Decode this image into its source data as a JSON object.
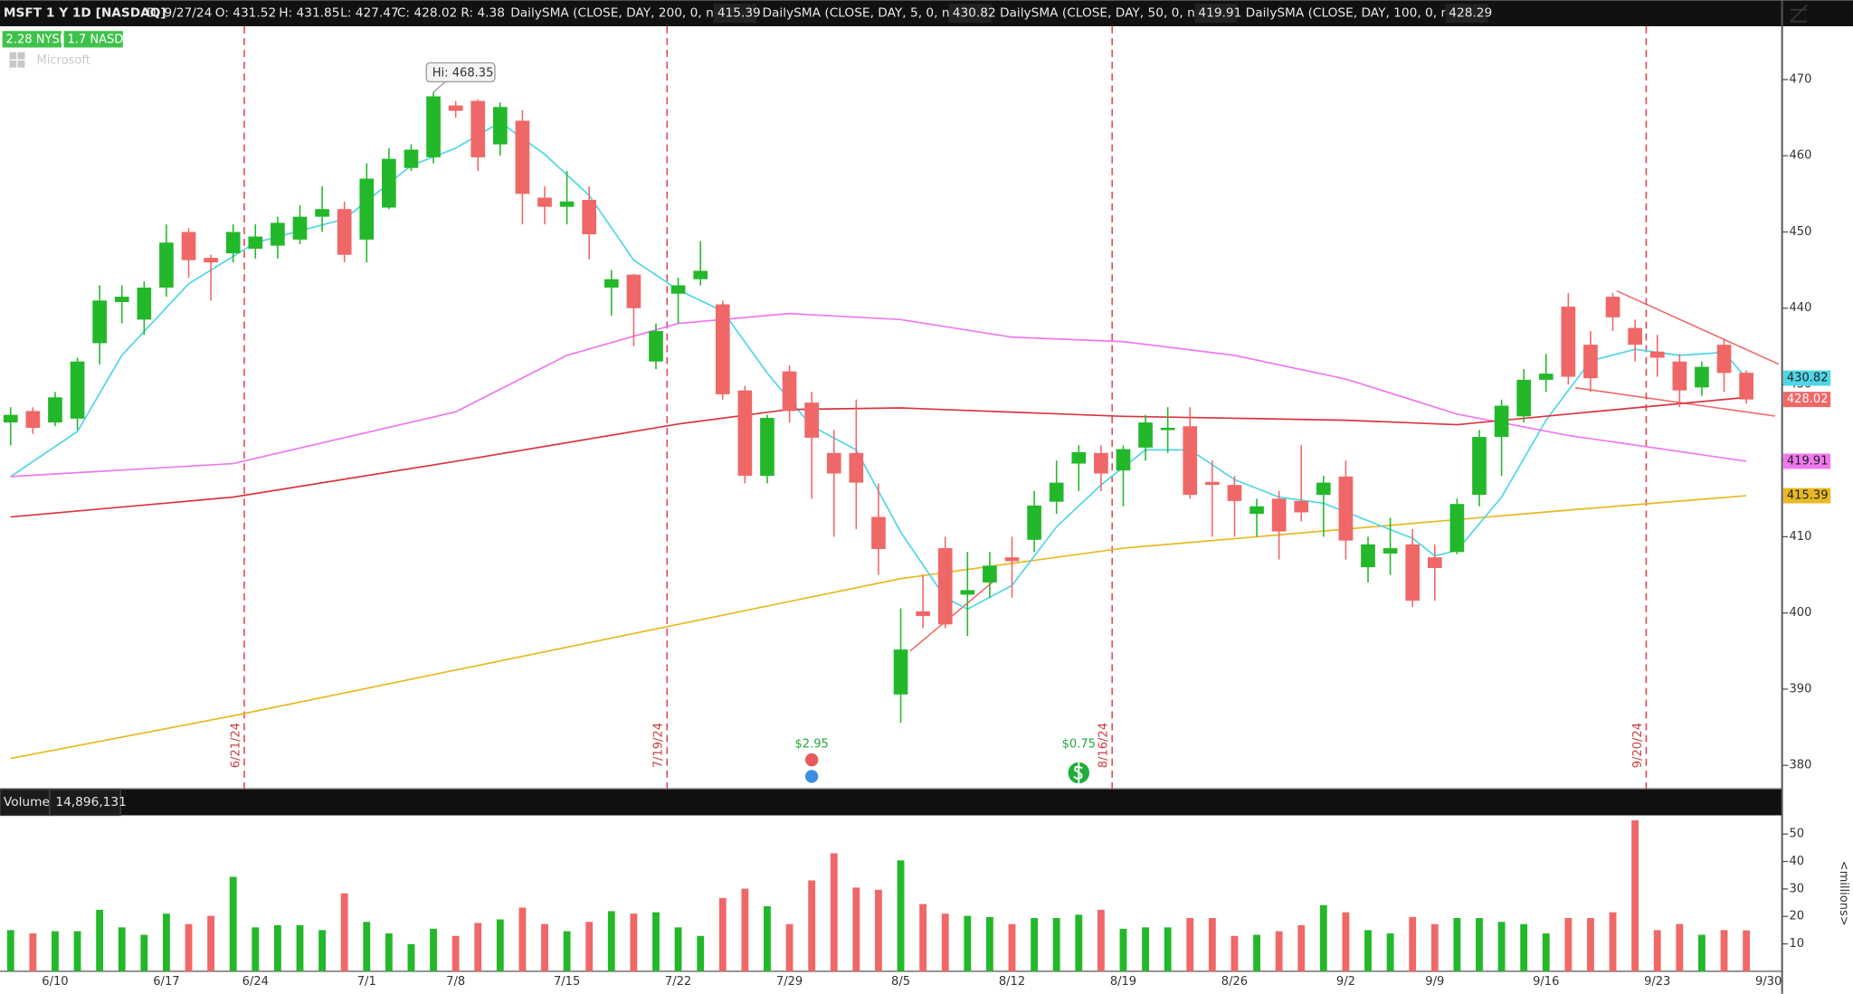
{
  "header": {
    "symbol": "MSFT 1 Y 1D [NASDAQ]",
    "date_label": "D:",
    "date": "9/27/24",
    "open_label": "O:",
    "high_label": "H:",
    "low_label": "L:",
    "close_label": "C:",
    "range_label": "R:",
    "range": 4.38,
    "nyse": "2.28 NYSE",
    "nasd": "1.7 NASD",
    "watermark": "Microsoft",
    "hi_label": "Hi:"
  },
  "chart_data": {
    "type": "candlestick",
    "categories": [
      null,
      null,
      "6/10",
      null,
      null,
      null,
      null,
      "6/17",
      null,
      null,
      null,
      "6/24",
      null,
      null,
      null,
      null,
      "7/1",
      null,
      null,
      null,
      "7/8",
      null,
      null,
      null,
      null,
      "7/15",
      null,
      null,
      null,
      null,
      "7/22",
      null,
      null,
      null,
      null,
      "7/29",
      null,
      null,
      null,
      null,
      "8/5",
      null,
      null,
      null,
      null,
      "8/12",
      null,
      null,
      null,
      null,
      "8/19",
      null,
      null,
      null,
      null,
      "8/26",
      null,
      null,
      null,
      null,
      "9/2",
      null,
      null,
      null,
      "9/9",
      null,
      null,
      null,
      null,
      "9/16",
      null,
      null,
      null,
      null,
      "9/23",
      null,
      null,
      null,
      null,
      "9/30"
    ],
    "open": [
      425,
      426.5,
      425,
      425.5,
      435.4,
      440.8,
      438.5,
      442.7,
      450,
      446.6,
      447.2,
      447.8,
      448.2,
      449,
      452,
      453,
      449,
      453.2,
      458.4,
      459.8,
      466.6,
      467.2,
      461.5,
      464.6,
      454.5,
      453.3,
      454.2,
      442.7,
      444.4,
      433,
      441.9,
      443.8,
      440.5,
      429.2,
      418,
      431.7,
      427.6,
      421,
      421,
      412.6,
      389.3,
      400.2,
      408.5,
      402.4,
      404,
      407.3,
      409.6,
      414.6,
      419.6,
      421,
      418.7,
      421.7,
      424,
      424.5,
      417.2,
      416.8,
      413,
      415,
      414.7,
      415.5,
      417.9,
      406,
      407.8,
      409,
      407.3,
      408,
      415.5,
      423.1,
      425.8,
      430.6,
      440.2,
      435.2,
      441.5,
      437.4,
      434.3,
      433,
      429.6,
      435.2,
      431.52,
      null
    ],
    "high": [
      427,
      427,
      429,
      433.5,
      443,
      443,
      443.5,
      451,
      450.5,
      447,
      451,
      451,
      452,
      453.5,
      456,
      454,
      459,
      461,
      461.5,
      468.35,
      467.2,
      467.4,
      467,
      466,
      456,
      458,
      456,
      445,
      444.5,
      438,
      444,
      448.8,
      441,
      429.8,
      426,
      432.5,
      429,
      424,
      428,
      417,
      400.6,
      405,
      410,
      408,
      408,
      410,
      416,
      420,
      422,
      422,
      422,
      426,
      427,
      427,
      420,
      418,
      415,
      416,
      422,
      418,
      420,
      410,
      412.5,
      411,
      409,
      415,
      424,
      428,
      432,
      434,
      442,
      437,
      442,
      438.5,
      436.5,
      434,
      433,
      436,
      431.85,
      null
    ],
    "low": [
      422,
      423.5,
      424.5,
      424,
      432.6,
      438,
      436.5,
      441.5,
      444,
      441,
      446,
      446.5,
      446.5,
      448.4,
      450,
      446,
      446,
      453,
      458,
      459,
      465,
      458,
      460,
      451,
      451,
      451,
      446.4,
      439,
      435,
      432,
      438,
      443,
      428,
      417,
      417,
      425,
      415,
      410,
      411,
      405,
      385.6,
      398,
      398,
      397,
      402,
      402,
      408,
      413,
      416,
      416,
      414,
      420,
      421,
      415,
      410,
      410,
      410,
      407,
      412,
      410,
      407,
      404,
      405,
      400.8,
      401.6,
      407.7,
      414,
      418,
      425,
      429,
      430,
      429,
      437,
      433,
      431,
      427,
      428.5,
      429,
      427.47,
      null
    ],
    "close": [
      426,
      424.3,
      428.3,
      433,
      441,
      441.5,
      442.7,
      448.6,
      446.3,
      446,
      450,
      449.4,
      451.2,
      452,
      453,
      447,
      457,
      459.6,
      460.8,
      467.8,
      465.9,
      459.8,
      466.4,
      455,
      453.3,
      454,
      449.7,
      443.8,
      440,
      437,
      443,
      444.9,
      428.7,
      418,
      425.6,
      426.5,
      423,
      418.3,
      417.1,
      408.4,
      395.2,
      399.6,
      398.5,
      403,
      406.2,
      406.8,
      414.1,
      417.1,
      421.1,
      418.3,
      421.5,
      425,
      424.3,
      415.5,
      416.8,
      414.7,
      414,
      410.7,
      413.2,
      417.1,
      409.5,
      409,
      408.5,
      401.6,
      405.9,
      414.3,
      423.1,
      427.2,
      430.6,
      431.4,
      431,
      430.8,
      438.8,
      435.2,
      433.5,
      429.2,
      432.3,
      431.5,
      428.02,
      null
    ],
    "up_color": "#22b82a",
    "down_color": "#f06767",
    "ylim": [
      377,
      477
    ],
    "yticks": [
      380,
      390,
      400,
      410,
      420,
      430,
      440,
      450,
      460,
      470
    ],
    "series": [
      {
        "name": "DailySMA (CLOSE, DAY, 200, 0, no)",
        "color": "#e8b923",
        "x": [
          0,
          10,
          20,
          30,
          40,
          50,
          60,
          70,
          78
        ],
        "values": [
          380.9,
          386.5,
          392.5,
          398.5,
          404.5,
          408.5,
          411,
          413.5,
          415.39
        ]
      },
      {
        "name": "DailySMA (CLOSE, DAY, 5, 0, no)",
        "color": "#4fd6e6",
        "x": [
          0,
          3,
          5,
          8,
          11,
          15,
          18,
          20,
          22,
          24,
          26,
          28,
          30,
          32,
          34,
          36,
          38,
          40,
          42,
          43,
          45,
          47,
          49,
          51,
          53,
          55,
          57,
          59,
          61,
          63,
          64,
          65,
          67,
          69,
          71,
          73,
          75,
          77,
          78
        ],
        "values": [
          417.9,
          423.8,
          433.8,
          443.2,
          448.6,
          451.7,
          458.7,
          461,
          464.4,
          460.2,
          454.8,
          446.3,
          442.4,
          439.6,
          431.5,
          424.5,
          421.4,
          410.6,
          402,
          400.5,
          403.6,
          411.3,
          416.8,
          421.4,
          421.4,
          417.5,
          415.2,
          414.4,
          412.1,
          409.8,
          407.5,
          408.2,
          415.2,
          425.3,
          433.1,
          434.6,
          433.8,
          434.2,
          430.82
        ]
      },
      {
        "name": "DailySMA (CLOSE, DAY, 50, 0, no)",
        "color": "#ee78ee",
        "x": [
          0,
          10,
          20,
          25,
          30,
          35,
          40,
          45,
          50,
          55,
          60,
          65,
          70,
          78
        ],
        "values": [
          417.9,
          419.6,
          426.4,
          433.8,
          438,
          439.3,
          438.5,
          436.2,
          435.6,
          433.8,
          430.7,
          426.1,
          423.3,
          419.91
        ]
      },
      {
        "name": "DailySMA (CLOSE, DAY, 100, 0, no)",
        "color": "#d9353f",
        "x": [
          0,
          10,
          20,
          30,
          35,
          40,
          50,
          60,
          65,
          70,
          78
        ],
        "values": [
          412.6,
          415.2,
          419.9,
          424.8,
          426.7,
          426.9,
          425.8,
          425.3,
          424.7,
          426.1,
          428.29
        ]
      }
    ],
    "expirations": [
      null,
      null,
      null,
      null,
      null,
      null,
      null,
      null,
      null,
      null,
      "6/21/24",
      null,
      null,
      null,
      null,
      null,
      null,
      null,
      null,
      null,
      null,
      null,
      null,
      null,
      null,
      null,
      null,
      null,
      null,
      "7/19/24",
      null,
      null,
      null,
      null,
      null,
      null,
      null,
      null,
      null,
      null,
      null,
      null,
      null,
      null,
      null,
      null,
      null,
      null,
      null,
      "8/16/24",
      null,
      null,
      null,
      null,
      null,
      null,
      null,
      null,
      null,
      null,
      null,
      null,
      null,
      null,
      null,
      null,
      null,
      null,
      null,
      null,
      null,
      null,
      null,
      "9/20/24",
      null,
      null,
      null,
      null,
      null,
      null
    ],
    "events": [
      null,
      null,
      null,
      null,
      null,
      null,
      null,
      null,
      null,
      null,
      null,
      null,
      null,
      null,
      null,
      null,
      null,
      null,
      null,
      null,
      null,
      null,
      null,
      null,
      null,
      null,
      null,
      null,
      null,
      null,
      null,
      null,
      null,
      null,
      null,
      null,
      "$2.95",
      null,
      null,
      null,
      null,
      null,
      null,
      null,
      null,
      null,
      null,
      null,
      "$0.75",
      null,
      null,
      null,
      null,
      null,
      null,
      null,
      null,
      null,
      null,
      null,
      null,
      null,
      null,
      null,
      null,
      null,
      null,
      null,
      null,
      null,
      null,
      null,
      null,
      null,
      null,
      null,
      null,
      null,
      null,
      null
    ],
    "volume": {
      "label": "Volume",
      "axis_label": "<millions>",
      "ylim": [
        0,
        56.8
      ],
      "yticks": [
        10,
        20,
        30,
        40,
        50
      ],
      "values": [
        15,
        13.8,
        14.6,
        14.6,
        22.4,
        16,
        13.3,
        21,
        17.2,
        20.2,
        34.4,
        16,
        16.8,
        16.8,
        15,
        28.4,
        18,
        13.8,
        9.9,
        15.5,
        12.9,
        17.6,
        18.9,
        23.2,
        17.2,
        14.6,
        18,
        21.9,
        21,
        21.5,
        16,
        12.9,
        26.7,
        30.1,
        23.7,
        17.2,
        33.1,
        43,
        30.5,
        29.7,
        40.4,
        24.5,
        21,
        20.2,
        19.8,
        17.2,
        19.4,
        19.4,
        20.6,
        22.4,
        15.5,
        16,
        16,
        19.4,
        19.4,
        12.9,
        13.3,
        14.6,
        16.8,
        24.1,
        21.5,
        15,
        13.8,
        19.8,
        17.2,
        19.4,
        19.4,
        18,
        17.2,
        13.8,
        19.4,
        19.4,
        21.5,
        55,
        15,
        17.2,
        13.3,
        15,
        14.896131,
        null
      ],
      "value_labels": [
        null,
        null,
        null,
        null,
        null,
        null,
        null,
        null,
        null,
        null,
        null,
        null,
        null,
        null,
        null,
        null,
        null,
        null,
        null,
        null,
        null,
        null,
        null,
        null,
        null,
        null,
        null,
        null,
        null,
        null,
        null,
        null,
        null,
        null,
        null,
        null,
        null,
        null,
        null,
        null,
        null,
        null,
        null,
        null,
        null,
        null,
        null,
        null,
        null,
        null,
        null,
        null,
        null,
        null,
        null,
        null,
        null,
        null,
        null,
        null,
        null,
        null,
        null,
        null,
        null,
        null,
        null,
        null,
        null,
        null,
        null,
        null,
        null,
        null,
        null,
        null,
        null,
        null,
        "14,896,131",
        null
      ]
    }
  }
}
